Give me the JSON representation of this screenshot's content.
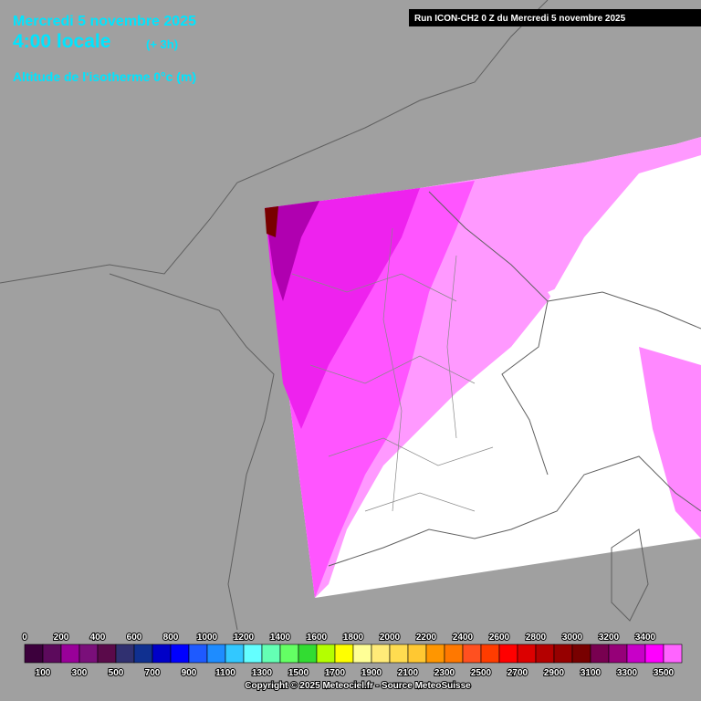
{
  "header": {
    "date": "Mercredi 5 novembre 2025",
    "time": "4:00 locale",
    "offset": "(+ 3h)",
    "field": "Altitude de l'isotherme 0°c (m)"
  },
  "run": "Run ICON-CH2 0 Z du Mercredi 5 novembre 2025",
  "colorbar": [
    {
      "label": "0",
      "color": "#3c003c"
    },
    {
      "label": "100",
      "color": "#5c0a5c"
    },
    {
      "label": "200",
      "color": "#990099"
    },
    {
      "label": "300",
      "color": "#7a0f7a"
    },
    {
      "label": "400",
      "color": "#5a0a4a"
    },
    {
      "label": "500",
      "color": "#303070"
    },
    {
      "label": "600",
      "color": "#103090"
    },
    {
      "label": "700",
      "color": "#0000c8"
    },
    {
      "label": "800",
      "color": "#0000ff"
    },
    {
      "label": "900",
      "color": "#1e5aff"
    },
    {
      "label": "1000",
      "color": "#1e8cff"
    },
    {
      "label": "1100",
      "color": "#32c8ff"
    },
    {
      "label": "1200",
      "color": "#64ffff"
    },
    {
      "label": "1300",
      "color": "#64ffb4"
    },
    {
      "label": "1400",
      "color": "#64ff64"
    },
    {
      "label": "1500",
      "color": "#32dc32"
    },
    {
      "label": "1600",
      "color": "#b4ff00"
    },
    {
      "label": "1700",
      "color": "#ffff00"
    },
    {
      "label": "1800",
      "color": "#ffff96"
    },
    {
      "label": "1900",
      "color": "#ffeb78"
    },
    {
      "label": "2000",
      "color": "#ffdc50"
    },
    {
      "label": "2100",
      "color": "#ffc832"
    },
    {
      "label": "2200",
      "color": "#ff9600"
    },
    {
      "label": "2300",
      "color": "#ff7800"
    },
    {
      "label": "2400",
      "color": "#ff5020"
    },
    {
      "label": "2500",
      "color": "#ff3c00"
    },
    {
      "label": "2600",
      "color": "#ff0000"
    },
    {
      "label": "2700",
      "color": "#dc0000"
    },
    {
      "label": "2800",
      "color": "#b40000"
    },
    {
      "label": "2900",
      "color": "#960000"
    },
    {
      "label": "3000",
      "color": "#780000"
    },
    {
      "label": "3100",
      "color": "#780050"
    },
    {
      "label": "3200",
      "color": "#960078"
    },
    {
      "label": "3300",
      "color": "#c800c8"
    },
    {
      "label": "3400",
      "color": "#ff00ff"
    },
    {
      "label": "3500",
      "color": "#ff64ff"
    }
  ],
  "copyright": "Copyright © 2025 Meteociel.fr - Source MeteoSuisse"
}
